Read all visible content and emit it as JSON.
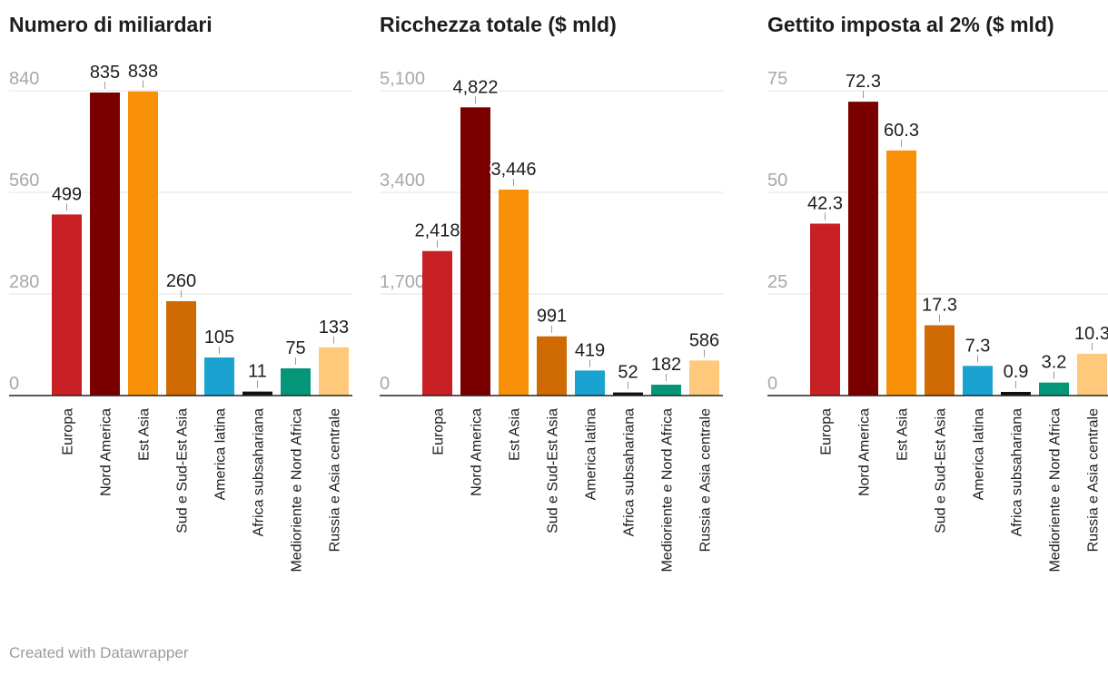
{
  "credit": "Created with Datawrapper",
  "colors": [
    "#c81f24",
    "#7a0000",
    "#f89107",
    "#d06a02",
    "#1aa3d1",
    "#111111",
    "#05967a",
    "#fec97a"
  ],
  "categories": [
    "Europa",
    "Nord America",
    "Est Asia",
    "Sud e Sud-Est Asia",
    "America latina",
    "Africa subsahariana",
    "Medioriente e Nord Africa",
    "Russia e Asia centrale"
  ],
  "chart_data": [
    {
      "type": "bar",
      "title": "Numero di miliardari",
      "categories": [
        "Europa",
        "Nord America",
        "Est Asia",
        "Sud e Sud-Est Asia",
        "America latina",
        "Africa subsahariana",
        "Medioriente e Nord Africa",
        "Russia e Asia centrale"
      ],
      "values": [
        499,
        835,
        838,
        260,
        105,
        11,
        75,
        133
      ],
      "value_labels": [
        "499",
        "835",
        "838",
        "260",
        "105",
        "11",
        "75",
        "133"
      ],
      "yticks": [
        0,
        280,
        560,
        840
      ],
      "ytick_labels": [
        "0",
        "280",
        "560",
        "840"
      ],
      "ylim": [
        0,
        840
      ],
      "xlabel": "",
      "ylabel": ""
    },
    {
      "type": "bar",
      "title": "Ricchezza totale ($ mld)",
      "categories": [
        "Europa",
        "Nord America",
        "Est Asia",
        "Sud e Sud-Est Asia",
        "America latina",
        "Africa subsahariana",
        "Medioriente e Nord Africa",
        "Russia e Asia centrale"
      ],
      "values": [
        2418,
        4822,
        3446,
        991,
        419,
        52,
        182,
        586
      ],
      "value_labels": [
        "2,418",
        "4,822",
        "3,446",
        "991",
        "419",
        "52",
        "182",
        "586"
      ],
      "yticks": [
        0,
        1700,
        3400,
        5100
      ],
      "ytick_labels": [
        "0",
        "1,700",
        "3,400",
        "5,100"
      ],
      "ylim": [
        0,
        5100
      ],
      "xlabel": "",
      "ylabel": ""
    },
    {
      "type": "bar",
      "title": "Gettito imposta al 2% ($ mld)",
      "categories": [
        "Europa",
        "Nord America",
        "Est Asia",
        "Sud e Sud-Est Asia",
        "America latina",
        "Africa subsahariana",
        "Medioriente e Nord Africa",
        "Russia e Asia centrale"
      ],
      "values": [
        42.3,
        72.3,
        60.3,
        17.3,
        7.3,
        0.9,
        3.2,
        10.3
      ],
      "value_labels": [
        "42.3",
        "72.3",
        "60.3",
        "17.3",
        "7.3",
        "0.9",
        "3.2",
        "10.3"
      ],
      "yticks": [
        0,
        25,
        50,
        75
      ],
      "ytick_labels": [
        "0",
        "25",
        "50",
        "75"
      ],
      "ylim": [
        0,
        75
      ],
      "xlabel": "",
      "ylabel": ""
    }
  ]
}
